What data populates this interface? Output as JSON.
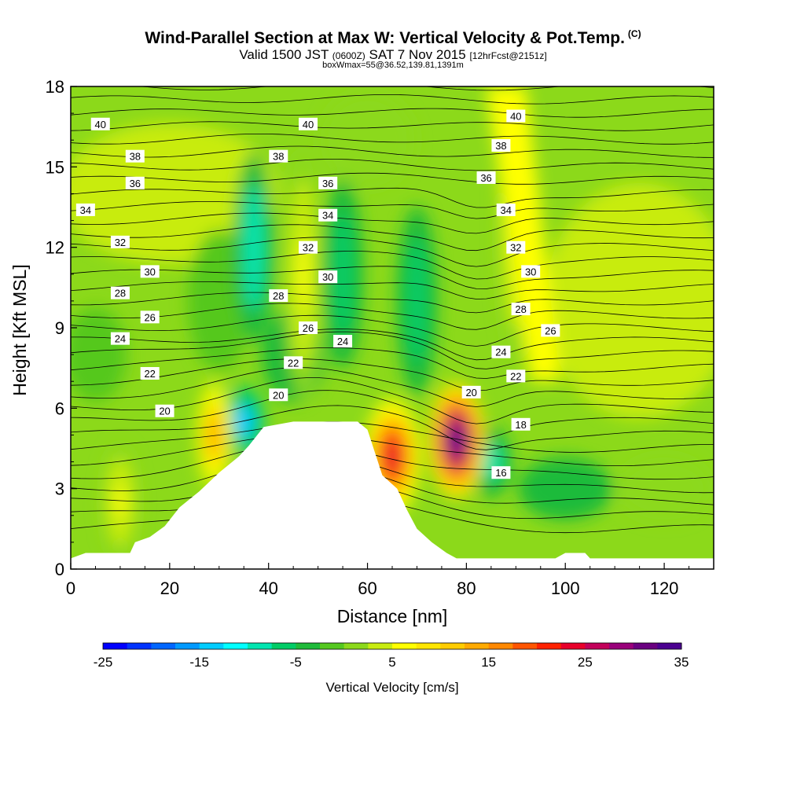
{
  "header": {
    "title": "Wind-Parallel Section at Max W: Vertical Velocity & Pot.Temp.",
    "copyright": "(C)",
    "subtitle_main_a": "Valid 1500 JST",
    "subtitle_small_a": "(0600Z)",
    "subtitle_main_b": "SAT 7 Nov 2015",
    "subtitle_small_b": "[12hrFcst@2151z]",
    "subtitle2": "boxWmax=55@36.52,139.81,1391m"
  },
  "chart_data": {
    "type": "heatmap",
    "xlabel": "Distance [nm]",
    "ylabel": "Height [Kft MSL]",
    "xlim": [
      0,
      130
    ],
    "ylim": [
      0,
      18
    ],
    "xticks": [
      0,
      20,
      40,
      60,
      80,
      100,
      120
    ],
    "yticks": [
      0,
      3,
      6,
      9,
      12,
      15,
      18
    ],
    "colorbar": {
      "label": "Vertical Velocity [cm/s]",
      "min": -25,
      "max": 35,
      "step": 2.5,
      "tick_values": [
        -25,
        -15,
        -5,
        5,
        15,
        25,
        35
      ],
      "colors": [
        "#0000ff",
        "#0033ff",
        "#0066ff",
        "#0099ff",
        "#00ccff",
        "#00ffff",
        "#00e5b0",
        "#00cc66",
        "#1fbb3a",
        "#55c81f",
        "#8cd91a",
        "#c8ec10",
        "#ffff00",
        "#ffe600",
        "#ffcc00",
        "#ffaa00",
        "#ff8800",
        "#ff5500",
        "#ff2200",
        "#e8002a",
        "#c2005a",
        "#99007a",
        "#6a0080",
        "#4b0090"
      ]
    },
    "terrain": [
      [
        0,
        0.4
      ],
      [
        3,
        0.6
      ],
      [
        12,
        0.6
      ],
      [
        13,
        1.0
      ],
      [
        16,
        1.2
      ],
      [
        19,
        1.6
      ],
      [
        22,
        2.3
      ],
      [
        26,
        2.9
      ],
      [
        30,
        3.6
      ],
      [
        34,
        4.2
      ],
      [
        36,
        4.6
      ],
      [
        39,
        5.3
      ],
      [
        45,
        5.5
      ],
      [
        55,
        5.5
      ],
      [
        58,
        5.5
      ],
      [
        60,
        5.2
      ],
      [
        63,
        3.5
      ],
      [
        66,
        3.0
      ],
      [
        68,
        2.2
      ],
      [
        70,
        1.5
      ],
      [
        73,
        1.0
      ],
      [
        76,
        0.6
      ],
      [
        78,
        0.4
      ],
      [
        98,
        0.4
      ],
      [
        100,
        0.6
      ],
      [
        104,
        0.6
      ],
      [
        105,
        0.4
      ],
      [
        130,
        0.4
      ]
    ],
    "updrafts": [
      {
        "x": 29,
        "y": 5.0,
        "w": 14
      },
      {
        "x": 65,
        "y": 4.2,
        "w": 24
      },
      {
        "x": 78,
        "y": 4.8,
        "w": 34
      },
      {
        "x": 90,
        "y": 12.5,
        "w": 6
      },
      {
        "x": 47,
        "y": 11.0,
        "w": 5
      },
      {
        "x": 10,
        "y": 2.5,
        "w": 6
      }
    ],
    "downdrafts": [
      {
        "x": 35,
        "y": 5.5,
        "w": -15
      },
      {
        "x": 37,
        "y": 12.0,
        "w": -8
      },
      {
        "x": 55,
        "y": 11.0,
        "w": -7
      },
      {
        "x": 70,
        "y": 10.0,
        "w": -7
      },
      {
        "x": 85,
        "y": 4.0,
        "w": -8
      }
    ],
    "contour_labels": [
      {
        "x": 6,
        "y": 16.6,
        "text": "40"
      },
      {
        "x": 48,
        "y": 16.6,
        "text": "40"
      },
      {
        "x": 90,
        "y": 16.9,
        "text": "40"
      },
      {
        "x": 13,
        "y": 15.4,
        "text": "38"
      },
      {
        "x": 42,
        "y": 15.4,
        "text": "38"
      },
      {
        "x": 87,
        "y": 15.8,
        "text": "38"
      },
      {
        "x": 13,
        "y": 14.4,
        "text": "36"
      },
      {
        "x": 52,
        "y": 14.4,
        "text": "36"
      },
      {
        "x": 84,
        "y": 14.6,
        "text": "36"
      },
      {
        "x": 3,
        "y": 13.4,
        "text": "34"
      },
      {
        "x": 52,
        "y": 13.2,
        "text": "34"
      },
      {
        "x": 88,
        "y": 13.4,
        "text": "34"
      },
      {
        "x": 10,
        "y": 12.2,
        "text": "32"
      },
      {
        "x": 48,
        "y": 12.0,
        "text": "32"
      },
      {
        "x": 90,
        "y": 12.0,
        "text": "32"
      },
      {
        "x": 16,
        "y": 11.1,
        "text": "30"
      },
      {
        "x": 52,
        "y": 10.9,
        "text": "30"
      },
      {
        "x": 93,
        "y": 11.1,
        "text": "30"
      },
      {
        "x": 10,
        "y": 10.3,
        "text": "28"
      },
      {
        "x": 42,
        "y": 10.2,
        "text": "28"
      },
      {
        "x": 91,
        "y": 9.7,
        "text": "28"
      },
      {
        "x": 16,
        "y": 9.4,
        "text": "26"
      },
      {
        "x": 48,
        "y": 9.0,
        "text": "26"
      },
      {
        "x": 97,
        "y": 8.9,
        "text": "26"
      },
      {
        "x": 10,
        "y": 8.6,
        "text": "24"
      },
      {
        "x": 55,
        "y": 8.5,
        "text": "24"
      },
      {
        "x": 87,
        "y": 8.1,
        "text": "24"
      },
      {
        "x": 16,
        "y": 7.3,
        "text": "22"
      },
      {
        "x": 45,
        "y": 7.7,
        "text": "22"
      },
      {
        "x": 90,
        "y": 7.2,
        "text": "22"
      },
      {
        "x": 19,
        "y": 5.9,
        "text": "20"
      },
      {
        "x": 42,
        "y": 6.5,
        "text": "20"
      },
      {
        "x": 81,
        "y": 6.6,
        "text": "20"
      },
      {
        "x": 91,
        "y": 5.4,
        "text": "18"
      },
      {
        "x": 87,
        "y": 3.6,
        "text": "16"
      }
    ]
  }
}
